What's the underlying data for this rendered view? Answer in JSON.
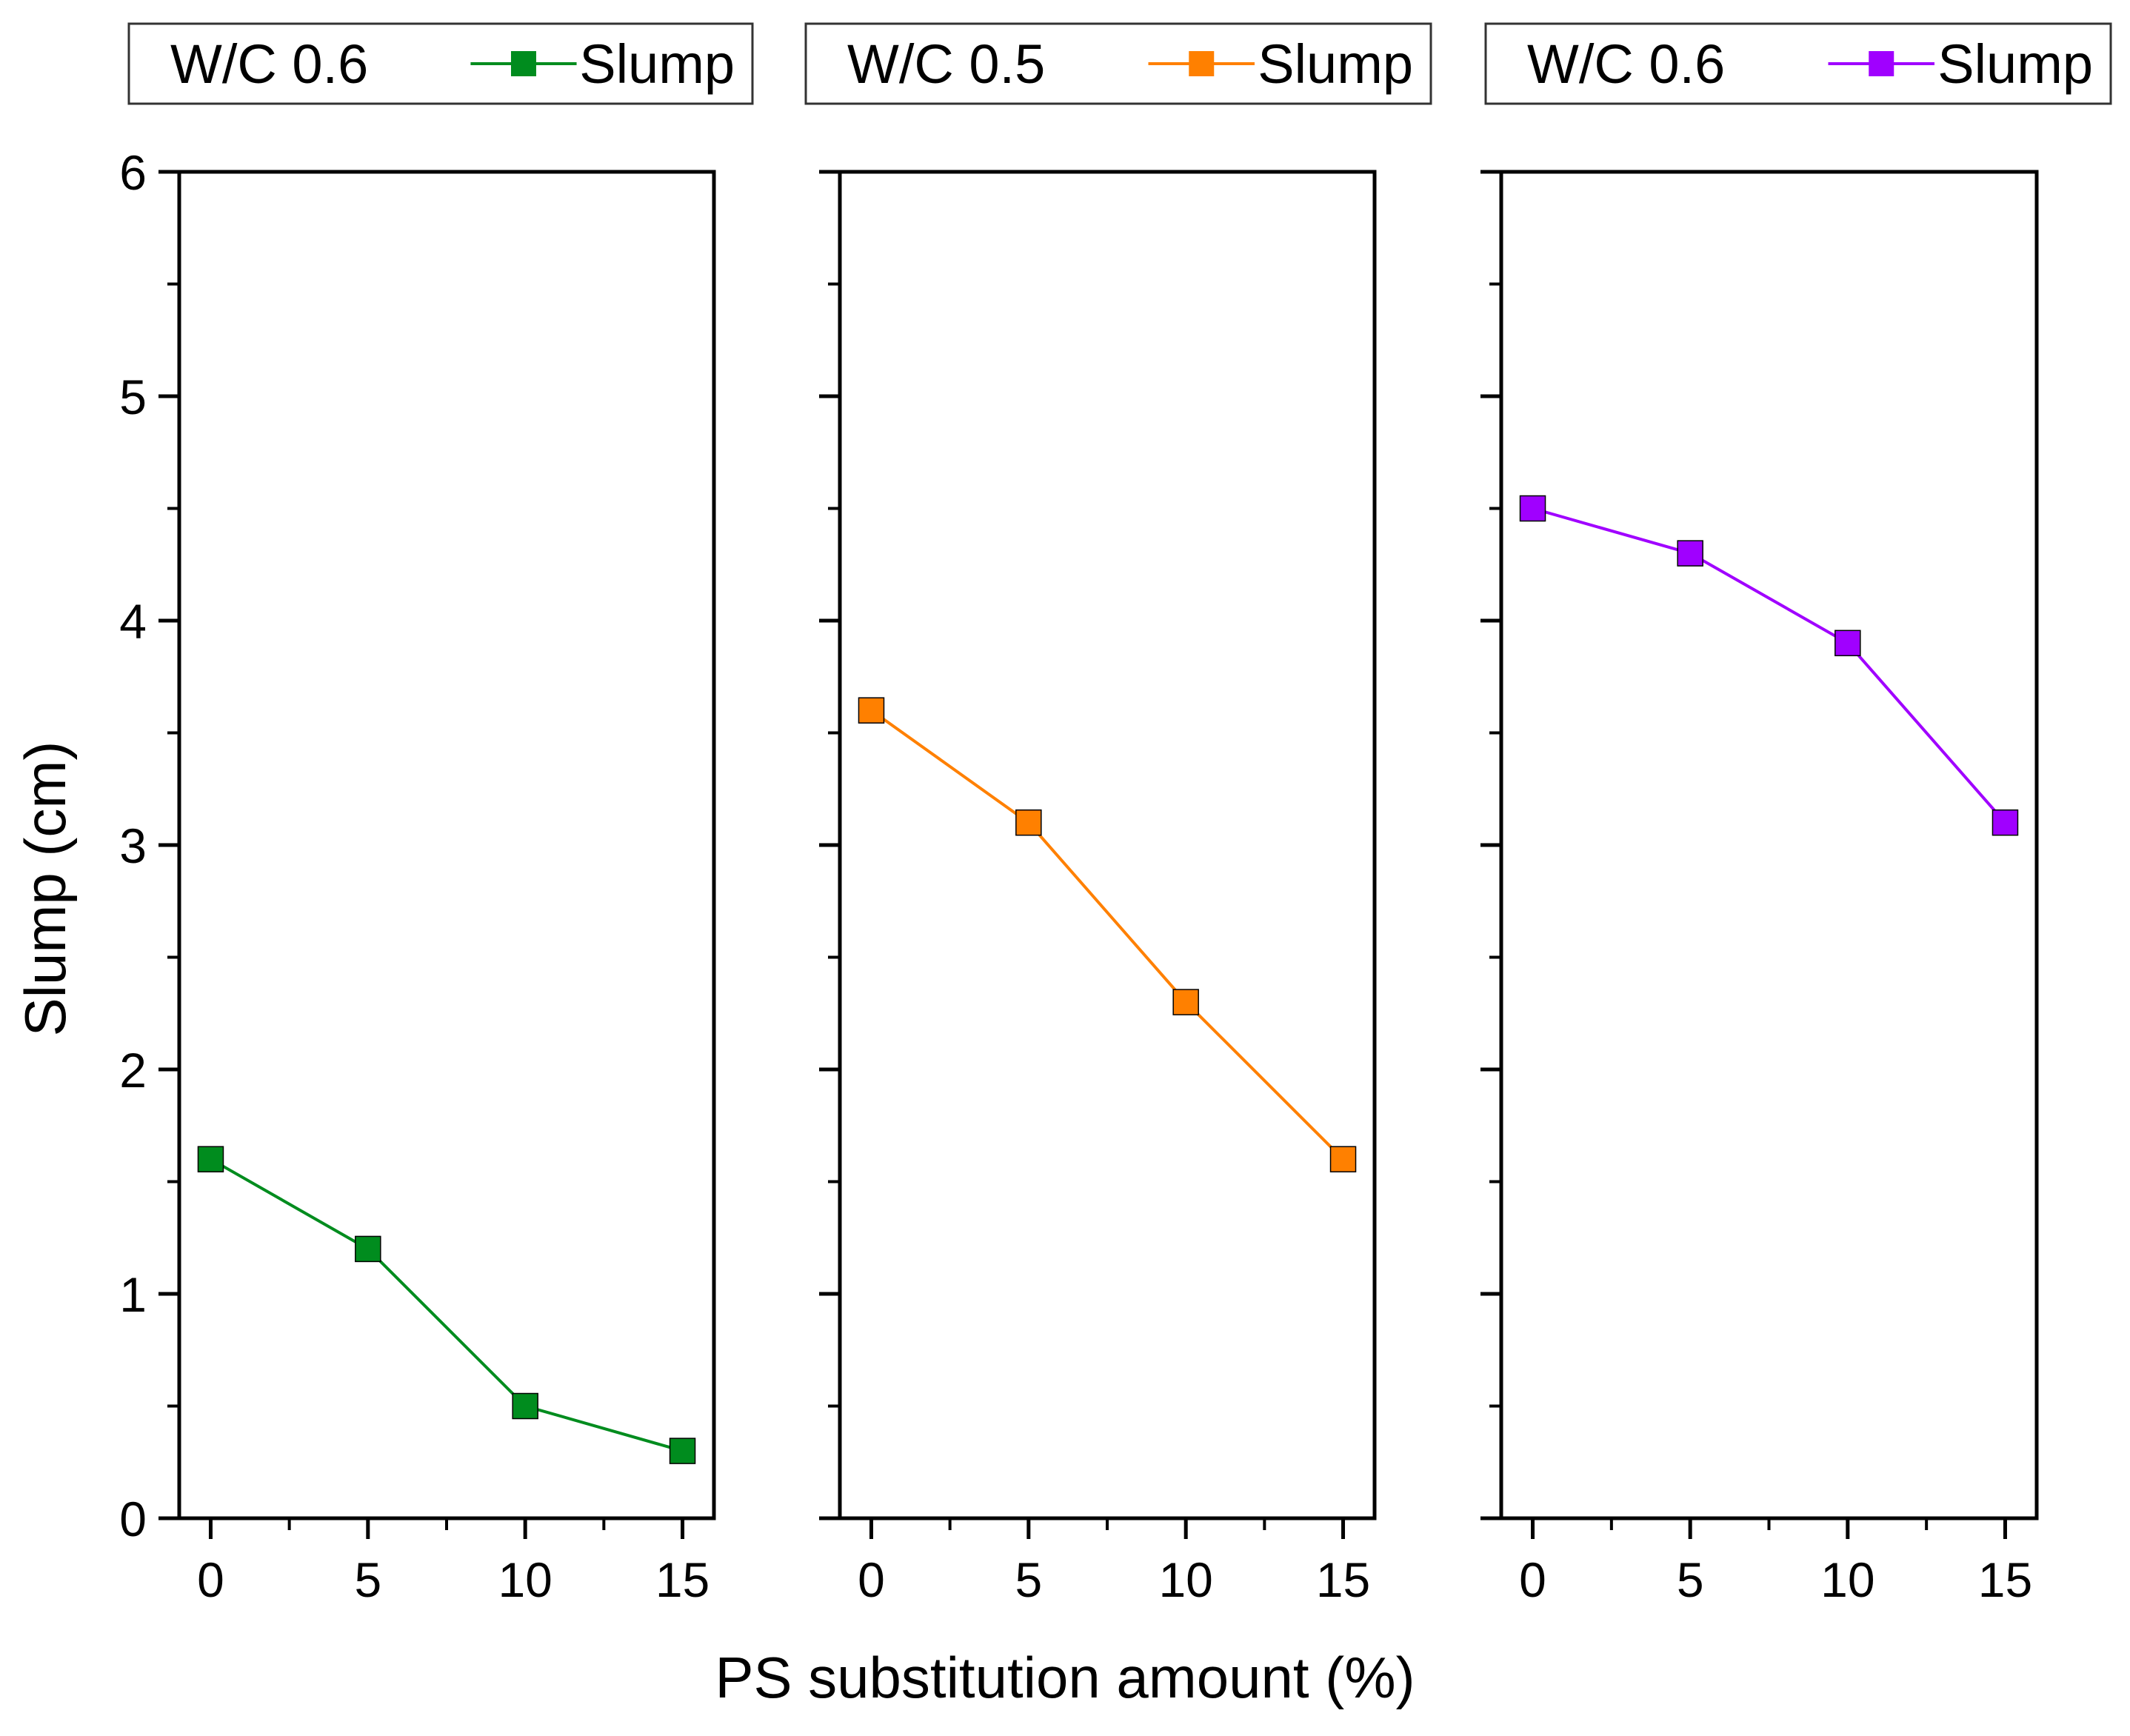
{
  "chart_data": {
    "type": "line",
    "xlabel": "PS substitution amount (%)",
    "ylabel": "Slump (cm)",
    "ylim": [
      0,
      6
    ],
    "yticks": [
      0,
      1,
      2,
      3,
      4,
      5,
      6
    ],
    "xlim": [
      -1,
      16
    ],
    "xticks": [
      0,
      5,
      10,
      15
    ],
    "grid": false,
    "panels": [
      {
        "legend": {
          "title": "W/C 0.6",
          "series_label": "Slump",
          "placement": "top"
        },
        "series": [
          {
            "name": "Slump",
            "color": "#008c1e",
            "x": [
              0,
              5,
              10,
              15
            ],
            "values": [
              1.6,
              1.2,
              0.5,
              0.3
            ]
          }
        ]
      },
      {
        "legend": {
          "title": "W/C 0.5",
          "series_label": "Slump",
          "placement": "top"
        },
        "series": [
          {
            "name": "Slump",
            "color": "#ff8000",
            "x": [
              0,
              5,
              10,
              15
            ],
            "values": [
              3.6,
              3.1,
              2.3,
              1.6
            ]
          }
        ]
      },
      {
        "legend": {
          "title": "W/C 0.6",
          "series_label": "Slump",
          "placement": "top"
        },
        "series": [
          {
            "name": "Slump",
            "color": "#a000ff",
            "x": [
              0,
              5,
              10,
              15
            ],
            "values": [
              4.5,
              4.3,
              3.9,
              3.1
            ]
          }
        ]
      }
    ]
  }
}
